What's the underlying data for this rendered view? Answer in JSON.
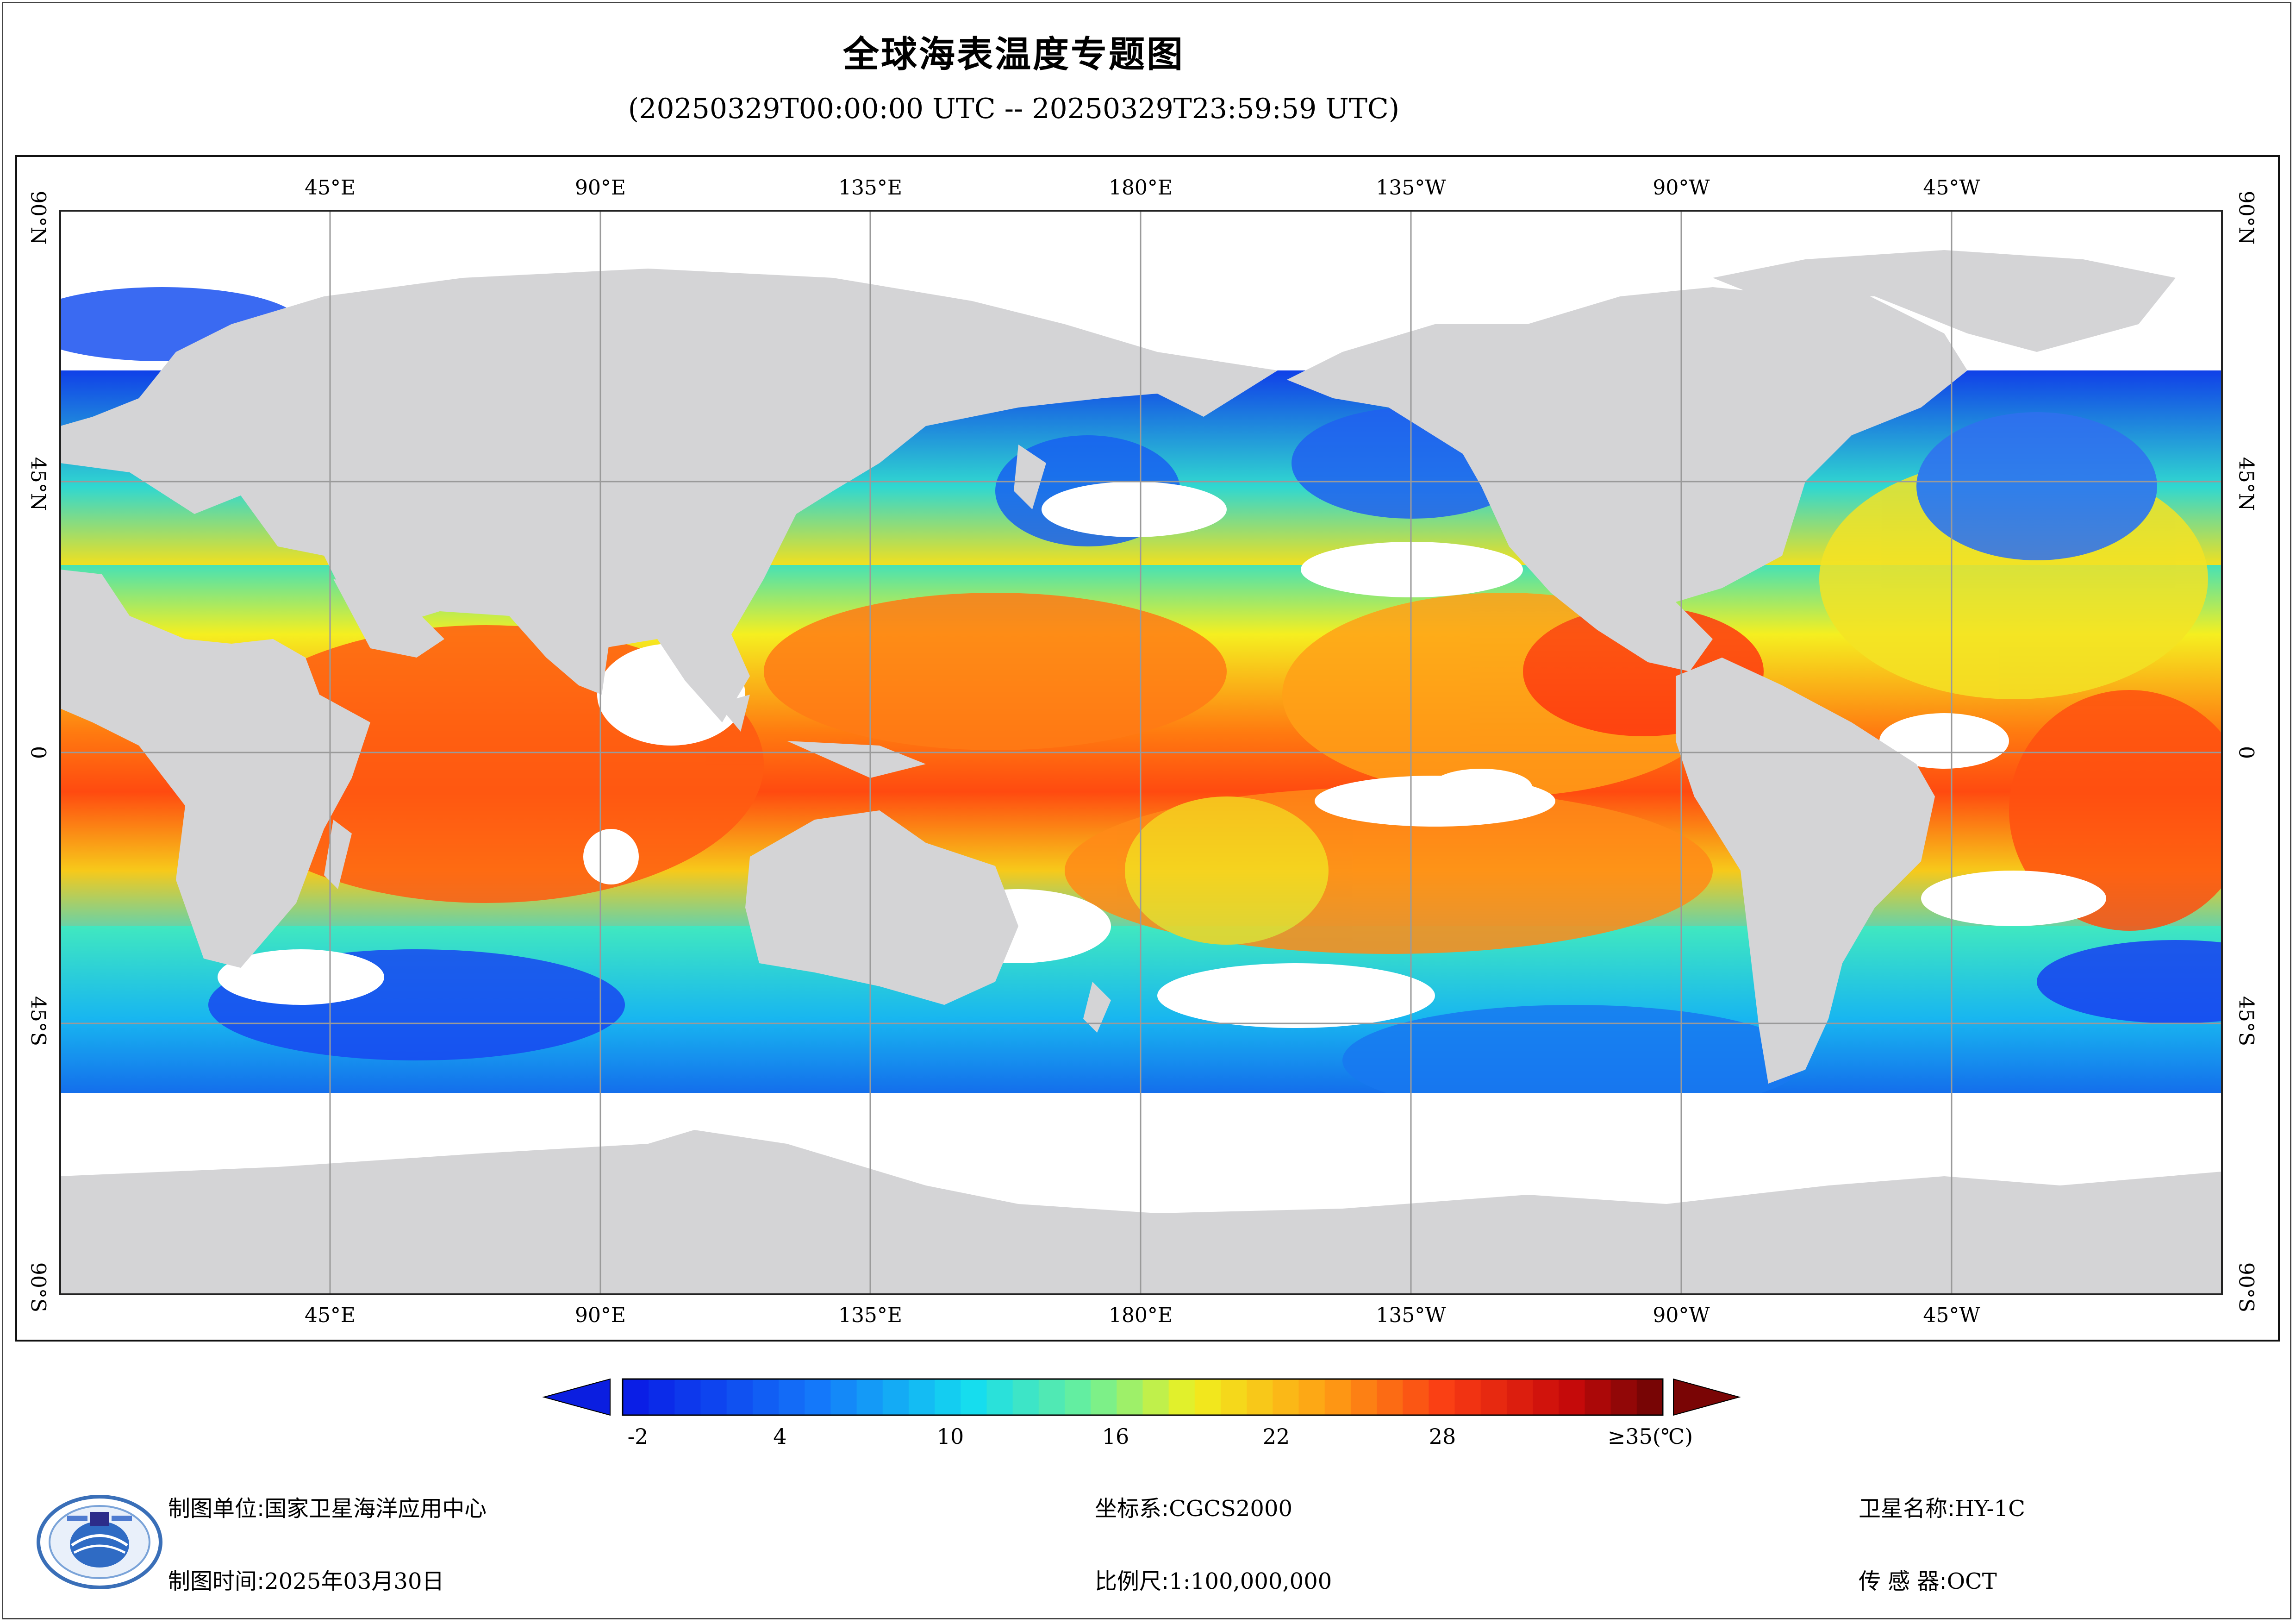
{
  "header": {
    "title": "全球海表温度专题图",
    "subtitle": "(20250329T00:00:00 UTC -- 20250329T23:59:59 UTC)"
  },
  "map": {
    "top_ticks": [
      "45°E",
      "90°E",
      "135°E",
      "180°E",
      "135°W",
      "90°W",
      "45°W"
    ],
    "bottom_ticks": [
      "45°E",
      "90°E",
      "135°E",
      "180°E",
      "135°W",
      "90°W",
      "45°W"
    ],
    "left_ticks": [
      "90°N",
      "45°N",
      "0",
      "45°S",
      "90°S"
    ],
    "right_ticks": [
      "90°N",
      "45°N",
      "0",
      "45°S",
      "90°S"
    ],
    "colors": {
      "land": "#d4d4d6",
      "cloud": "#ffffff",
      "grid": "#9a9a9a"
    }
  },
  "colorbar": {
    "labels": [
      "-2",
      "4",
      "10",
      "16",
      "22",
      "28",
      "≥35(℃)"
    ],
    "under_color": "#0b1ee0",
    "over_color": "#7a0505"
  },
  "footer": {
    "unit_label": "制图单位:",
    "unit_value": "国家卫星海洋应用中心",
    "time_label": "制图时间:",
    "time_value": "2025年03月30日",
    "crs_label": "坐标系:",
    "crs_value": "CGCS2000",
    "scale_label": "比例尺:",
    "scale_value": "1:100,000,000",
    "satellite_label": "卫星名称:",
    "satellite_value": "HY-1C",
    "sensor_label": "传 感 器:",
    "sensor_value": "OCT"
  }
}
